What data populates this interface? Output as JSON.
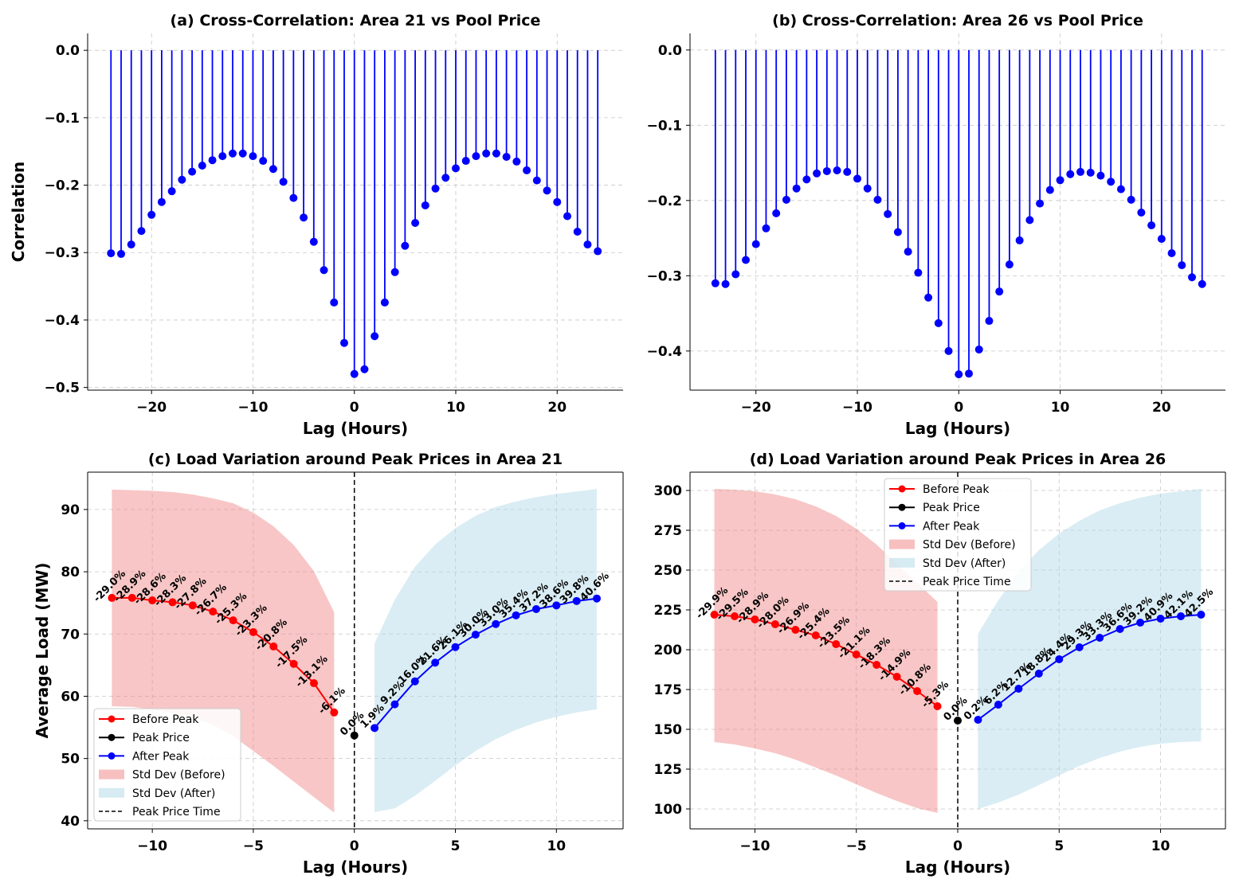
{
  "colors": {
    "stem": "#0000ff",
    "before": "#ff0000",
    "peak": "#000000",
    "after": "#0000ff",
    "band_before": "#f08080",
    "band_after": "#add8e6",
    "grid": "#b0b0b0"
  },
  "chart_data": [
    {
      "type": "stem",
      "title": "(a) Cross-Correlation: Area 21 vs Pool Price",
      "xlabel": "Lag (Hours)",
      "ylabel": "Correlation",
      "xlim": [
        -26.3,
        26.5
      ],
      "ylim": [
        -0.504,
        0.025
      ],
      "xticks": [
        -20,
        -10,
        0,
        10,
        20
      ],
      "xtick_labels": [
        "−20",
        "−10",
        "0",
        "10",
        "20"
      ],
      "yticks": [
        0,
        -0.1,
        -0.2,
        -0.3,
        -0.4,
        -0.5
      ],
      "ytick_labels": [
        "0.0",
        "−0.1",
        "−0.2",
        "−0.3",
        "−0.4",
        "−0.5"
      ],
      "grid": true,
      "x": [
        -24,
        -23,
        -22,
        -21,
        -20,
        -19,
        -18,
        -17,
        -16,
        -15,
        -14,
        -13,
        -12,
        -11,
        -10,
        -9,
        -8,
        -7,
        -6,
        -5,
        -4,
        -3,
        -2,
        -1,
        0,
        1,
        2,
        3,
        4,
        5,
        6,
        7,
        8,
        9,
        10,
        11,
        12,
        13,
        14,
        15,
        16,
        17,
        18,
        19,
        20,
        21,
        22,
        23,
        24
      ],
      "values": [
        -0.301,
        -0.302,
        -0.288,
        -0.268,
        -0.244,
        -0.225,
        -0.209,
        -0.192,
        -0.18,
        -0.171,
        -0.163,
        -0.157,
        -0.153,
        -0.153,
        -0.157,
        -0.164,
        -0.176,
        -0.195,
        -0.219,
        -0.248,
        -0.284,
        -0.326,
        -0.374,
        -0.434,
        -0.48,
        -0.473,
        -0.424,
        -0.374,
        -0.329,
        -0.29,
        -0.256,
        -0.23,
        -0.205,
        -0.189,
        -0.175,
        -0.164,
        -0.157,
        -0.153,
        -0.153,
        -0.158,
        -0.165,
        -0.178,
        -0.193,
        -0.208,
        -0.225,
        -0.246,
        -0.269,
        -0.288,
        -0.298
      ]
    },
    {
      "type": "stem",
      "title": "(b) Cross-Correlation: Area 26 vs Pool Price",
      "xlabel": "Lag (Hours)",
      "ylabel": "",
      "xlim": [
        -26.5,
        26.3
      ],
      "ylim": [
        -0.452,
        0.022
      ],
      "xticks": [
        -20,
        -10,
        0,
        10,
        20
      ],
      "xtick_labels": [
        "−20",
        "−10",
        "0",
        "10",
        "20"
      ],
      "yticks": [
        0,
        -0.1,
        -0.2,
        -0.3,
        -0.4
      ],
      "ytick_labels": [
        "0.0",
        "−0.1",
        "−0.2",
        "−0.3",
        "−0.4"
      ],
      "grid": true,
      "x": [
        -24,
        -23,
        -22,
        -21,
        -20,
        -19,
        -18,
        -17,
        -16,
        -15,
        -14,
        -13,
        -12,
        -11,
        -10,
        -9,
        -8,
        -7,
        -6,
        -5,
        -4,
        -3,
        -2,
        -1,
        0,
        1,
        2,
        3,
        4,
        5,
        6,
        7,
        8,
        9,
        10,
        11,
        12,
        13,
        14,
        15,
        16,
        17,
        18,
        19,
        20,
        21,
        22,
        23,
        24
      ],
      "values": [
        -0.31,
        -0.311,
        -0.298,
        -0.279,
        -0.258,
        -0.237,
        -0.217,
        -0.199,
        -0.184,
        -0.172,
        -0.164,
        -0.161,
        -0.16,
        -0.162,
        -0.171,
        -0.184,
        -0.199,
        -0.218,
        -0.242,
        -0.268,
        -0.296,
        -0.329,
        -0.363,
        -0.4,
        -0.431,
        -0.43,
        -0.398,
        -0.36,
        -0.321,
        -0.285,
        -0.253,
        -0.226,
        -0.204,
        -0.186,
        -0.173,
        -0.165,
        -0.162,
        -0.163,
        -0.167,
        -0.175,
        -0.185,
        -0.199,
        -0.216,
        -0.233,
        -0.251,
        -0.27,
        -0.286,
        -0.302,
        -0.311
      ]
    },
    {
      "type": "line",
      "title": "(c) Load Variation around Peak Prices in Area 21",
      "xlabel": "Lag (Hours)",
      "ylabel": "Average Load (MW)",
      "xlim": [
        -13.2,
        13.3
      ],
      "ylim": [
        38.7,
        96.0
      ],
      "xticks": [
        -10,
        -5,
        0,
        5,
        10
      ],
      "xtick_labels": [
        "−10",
        "−5",
        "0",
        "5",
        "10"
      ],
      "yticks": [
        40,
        50,
        60,
        70,
        80,
        90
      ],
      "ytick_labels": [
        "40",
        "50",
        "60",
        "70",
        "80",
        "90"
      ],
      "grid": true,
      "legend_position": "lower-left",
      "legend": [
        "Before Peak",
        "Peak Price",
        "After Peak",
        "Std Dev (Before)",
        "Std Dev (After)",
        "Peak Price Time"
      ],
      "before": {
        "x": [
          -12,
          -11,
          -10,
          -9,
          -8,
          -7,
          -6,
          -5,
          -4,
          -3,
          -2,
          -1
        ],
        "y": [
          75.8,
          75.8,
          75.4,
          75.1,
          74.6,
          73.6,
          72.2,
          70.3,
          68.0,
          65.2,
          62.1,
          57.4
        ],
        "labels": [
          "-29.0%",
          "-28.9%",
          "-28.6%",
          "-28.3%",
          "-27.8%",
          "-26.7%",
          "-25.3%",
          "-23.3%",
          "-20.8%",
          "-17.5%",
          "-13.1%",
          "-6.1%"
        ],
        "std_upper": [
          93.2,
          93.1,
          93.0,
          92.8,
          92.4,
          91.8,
          91.0,
          89.5,
          87.3,
          84.3,
          80.1,
          73.5
        ],
        "std_lower": [
          58.4,
          58.3,
          57.9,
          57.3,
          56.6,
          55.4,
          53.6,
          51.2,
          48.8,
          46.3,
          43.8,
          41.3
        ]
      },
      "peak": {
        "x": 0,
        "y": 53.7,
        "label": "0.0%"
      },
      "after": {
        "x": [
          1,
          2,
          3,
          4,
          5,
          6,
          7,
          8,
          9,
          10,
          11,
          12
        ],
        "y": [
          54.9,
          58.7,
          62.4,
          65.4,
          67.9,
          69.9,
          71.6,
          73.0,
          74.0,
          74.6,
          75.3,
          75.7
        ],
        "labels": [
          "1.9%",
          "9.2%",
          "16.0%",
          "21.6%",
          "26.1%",
          "30.0%",
          "33.0%",
          "35.4%",
          "37.2%",
          "38.6%",
          "39.8%",
          "40.6%"
        ],
        "std_upper": [
          68.5,
          75.5,
          80.8,
          84.4,
          87.0,
          89.0,
          90.4,
          91.3,
          92.0,
          92.5,
          92.9,
          93.3
        ],
        "std_lower": [
          41.4,
          42.0,
          44.0,
          46.4,
          48.9,
          51.2,
          53.1,
          54.6,
          55.8,
          56.7,
          57.4,
          57.9
        ]
      }
    },
    {
      "type": "line",
      "title": "(d) Load Variation around Peak Prices in Area 26",
      "xlabel": "Lag (Hours)",
      "ylabel": "",
      "xlim": [
        -13.2,
        13.2
      ],
      "ylim": [
        87.5,
        311.5
      ],
      "xticks": [
        -10,
        -5,
        0,
        5,
        10
      ],
      "xtick_labels": [
        "−10",
        "−5",
        "0",
        "5",
        "10"
      ],
      "yticks": [
        100,
        125,
        150,
        175,
        200,
        225,
        250,
        275,
        300
      ],
      "ytick_labels": [
        "100",
        "125",
        "150",
        "175",
        "200",
        "225",
        "250",
        "275",
        "300"
      ],
      "grid": true,
      "legend_position": "upper-center",
      "legend": [
        "Before Peak",
        "Peak Price",
        "After Peak",
        "Std Dev (Before)",
        "Std Dev (After)",
        "Peak Price Time"
      ],
      "before": {
        "x": [
          -12,
          -11,
          -10,
          -9,
          -8,
          -7,
          -6,
          -5,
          -4,
          -3,
          -2,
          -1
        ],
        "y": [
          222,
          221,
          219,
          216,
          212.5,
          209,
          203.5,
          197,
          190.5,
          183,
          174,
          164.5
        ],
        "labels": [
          "-29.9%",
          "-29.5%",
          "-28.9%",
          "-28.0%",
          "-26.9%",
          "-25.4%",
          "-23.5%",
          "-21.1%",
          "-18.3%",
          "-14.9%",
          "-10.8%",
          "-5.3%"
        ],
        "std_upper": [
          301,
          300.5,
          299.5,
          297.5,
          294.5,
          290,
          284,
          276,
          266,
          254,
          242,
          230
        ],
        "std_lower": [
          142,
          140.5,
          138,
          135,
          131,
          126,
          121,
          115.5,
          110,
          105,
          100.5,
          97.5
        ]
      },
      "peak": {
        "x": 0,
        "y": 155.5,
        "label": "0.0%"
      },
      "after": {
        "x": [
          1,
          2,
          3,
          4,
          5,
          6,
          7,
          8,
          9,
          10,
          11,
          12
        ],
        "y": [
          156,
          165.5,
          175.5,
          185,
          194,
          201.5,
          207.5,
          213,
          217,
          219.5,
          221,
          222
        ],
        "labels": [
          "0.2%",
          "6.2%",
          "12.7%",
          "18.8%",
          "24.4%",
          "29.3%",
          "33.3%",
          "36.6%",
          "39.2%",
          "40.9%",
          "42.1%",
          "42.5%"
        ],
        "std_upper": [
          210,
          231,
          249,
          262.5,
          273,
          281,
          287.5,
          292,
          295.5,
          298,
          299.5,
          301
        ],
        "std_lower": [
          100,
          104,
          109,
          115,
          121,
          127,
          132,
          136,
          139,
          141,
          142,
          142.5
        ]
      }
    }
  ]
}
